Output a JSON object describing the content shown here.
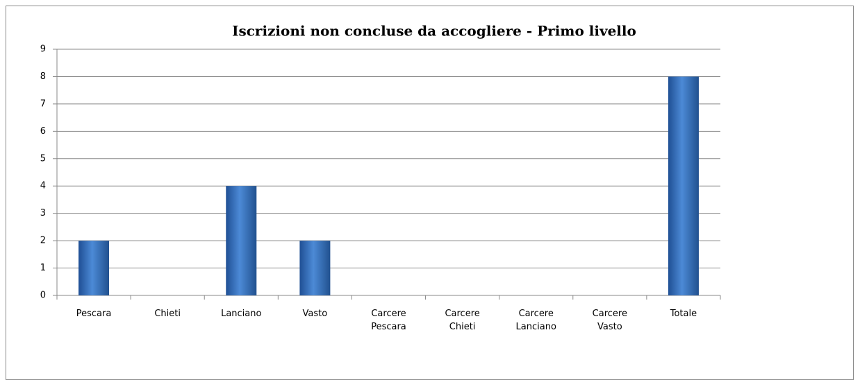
{
  "chart_data": {
    "type": "bar",
    "title": "Iscrizioni non concluse da accogliere - Primo livello",
    "categories": [
      "Pescara",
      "Chieti",
      "Lanciano",
      "Vasto",
      "Carcere Pescara",
      "Carcere Chieti",
      "Carcere Lanciano",
      "Carcere Vasto",
      "Totale"
    ],
    "values": [
      2,
      0,
      4,
      2,
      0,
      0,
      0,
      0,
      8
    ],
    "color": "#3a74c4",
    "ylim": [
      0,
      9
    ],
    "yticks": [
      0,
      1,
      2,
      3,
      4,
      5,
      6,
      7,
      8,
      9
    ],
    "grid": true
  }
}
